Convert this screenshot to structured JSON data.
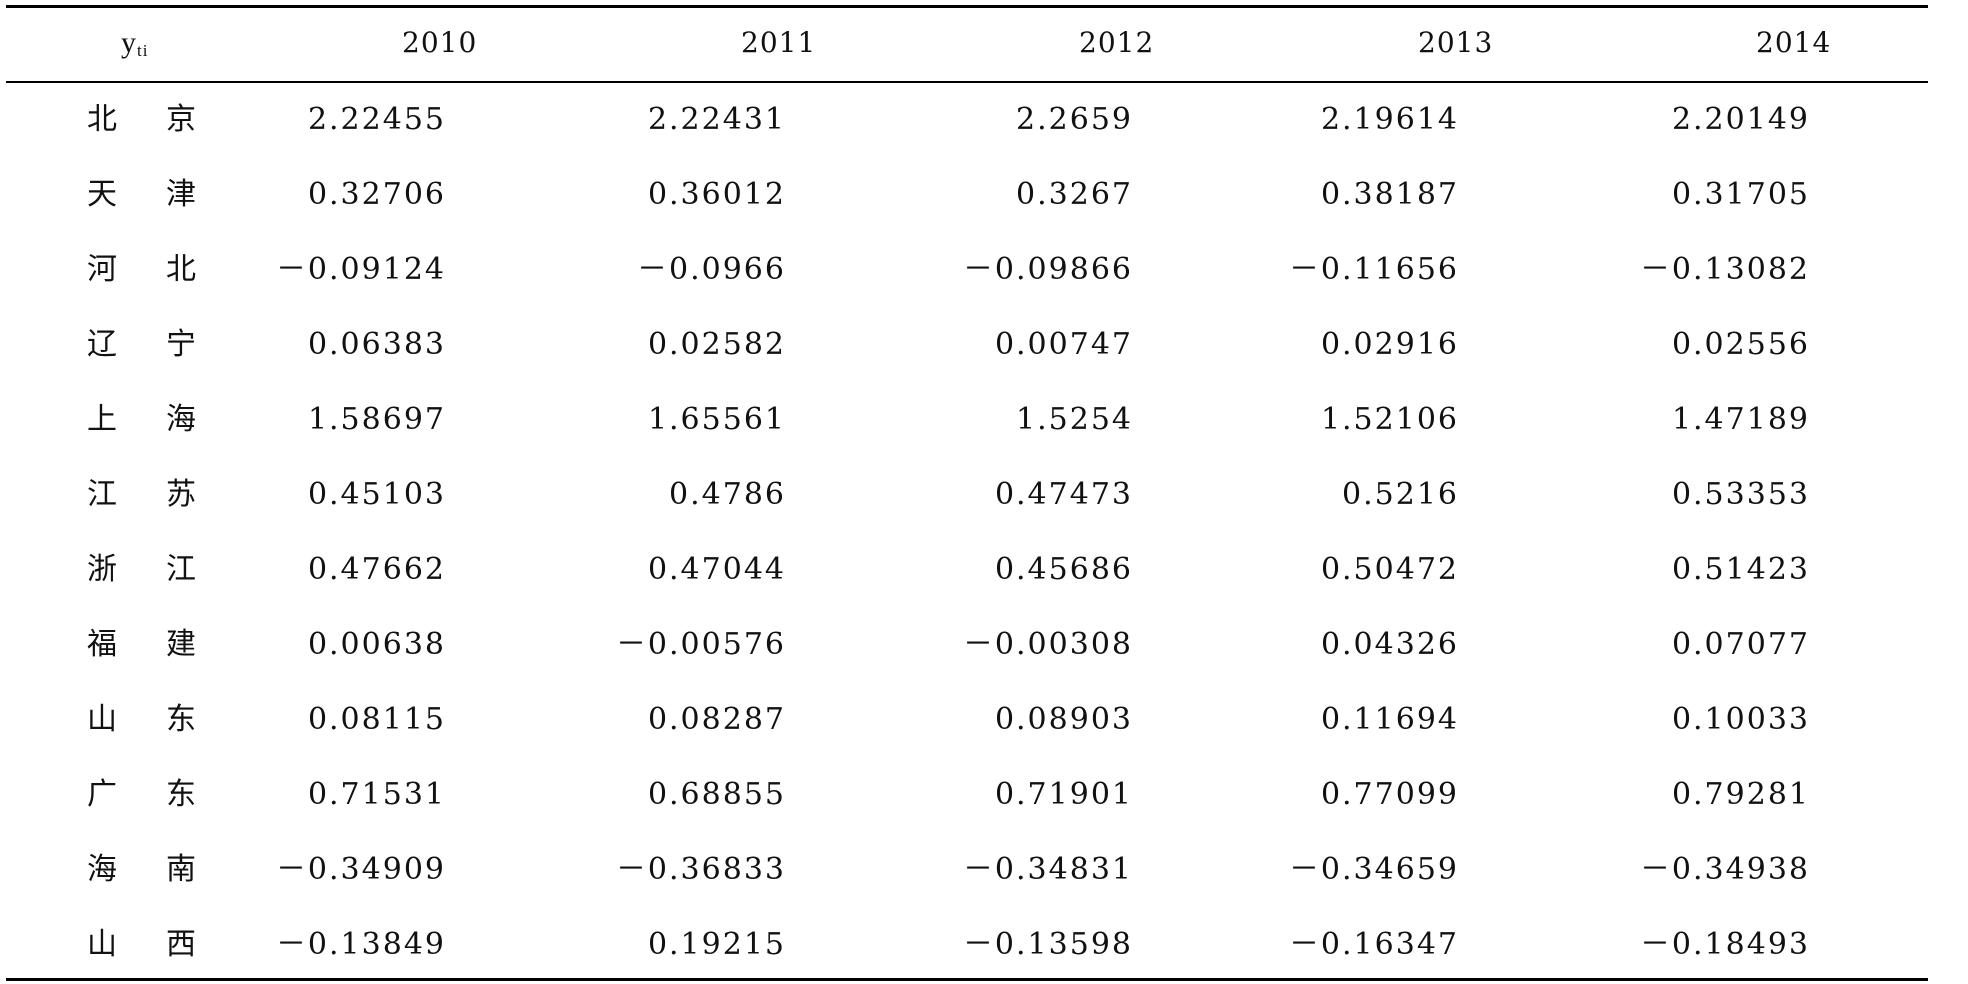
{
  "table": {
    "stub_header": {
      "main": "y",
      "sub": "ti"
    },
    "years": [
      "2010",
      "2011",
      "2012",
      "2013",
      "2014"
    ],
    "rows": [
      {
        "region": [
          "北",
          "京"
        ],
        "values": [
          "2.22455",
          "2.22431",
          "2.2659",
          "2.19614",
          "2.20149"
        ]
      },
      {
        "region": [
          "天",
          "津"
        ],
        "values": [
          "0.32706",
          "0.36012",
          "0.3267",
          "0.38187",
          "0.31705"
        ]
      },
      {
        "region": [
          "河",
          "北"
        ],
        "values": [
          "－0.09124",
          "－0.0966",
          "－0.09866",
          "－0.11656",
          "－0.13082"
        ]
      },
      {
        "region": [
          "辽",
          "宁"
        ],
        "values": [
          "0.06383",
          "0.02582",
          "0.00747",
          "0.02916",
          "0.02556"
        ]
      },
      {
        "region": [
          "上",
          "海"
        ],
        "values": [
          "1.58697",
          "1.65561",
          "1.5254",
          "1.52106",
          "1.47189"
        ]
      },
      {
        "region": [
          "江",
          "苏"
        ],
        "values": [
          "0.45103",
          "0.4786",
          "0.47473",
          "0.5216",
          "0.53353"
        ]
      },
      {
        "region": [
          "浙",
          "江"
        ],
        "values": [
          "0.47662",
          "0.47044",
          "0.45686",
          "0.50472",
          "0.51423"
        ]
      },
      {
        "region": [
          "福",
          "建"
        ],
        "values": [
          "0.00638",
          "－0.00576",
          "－0.00308",
          "0.04326",
          "0.07077"
        ]
      },
      {
        "region": [
          "山",
          "东"
        ],
        "values": [
          "0.08115",
          "0.08287",
          "0.08903",
          "0.11694",
          "0.10033"
        ]
      },
      {
        "region": [
          "广",
          "东"
        ],
        "values": [
          "0.71531",
          "0.68855",
          "0.71901",
          "0.77099",
          "0.79281"
        ]
      },
      {
        "region": [
          "海",
          "南"
        ],
        "values": [
          "－0.34909",
          "－0.36833",
          "－0.34831",
          "－0.34659",
          "－0.34938"
        ]
      },
      {
        "region": [
          "山",
          "西"
        ],
        "values": [
          "－0.13849",
          "0.19215",
          "－0.13598",
          "－0.16347",
          "－0.18493"
        ]
      }
    ]
  }
}
